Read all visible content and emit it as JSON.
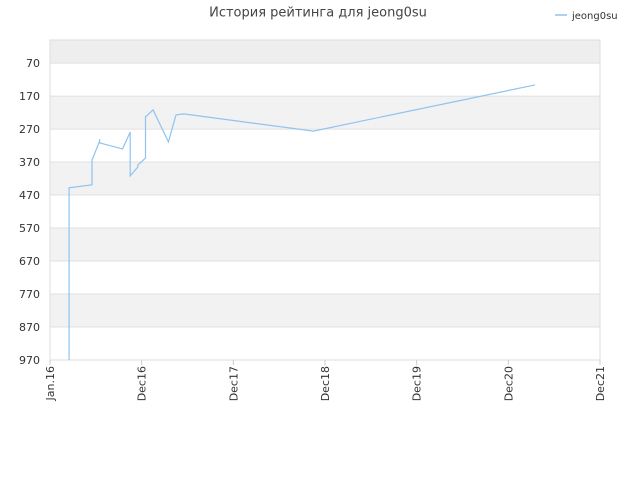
{
  "chart_data": {
    "type": "line",
    "title": "История рейтинга для jeong0su",
    "x": [
      "2016-02",
      "2016-02",
      "2016-02",
      "2016-02",
      "2016-02",
      "2016-02",
      "2016-02",
      "2016-05",
      "2016-05",
      "2016-06",
      "2016-06",
      "2016-06",
      "2016-09",
      "2016-10",
      "2016-10",
      "2016-10",
      "2016-11",
      "2016-11",
      "2016-12",
      "2016-12",
      "2016-12",
      "2017-01",
      "2017-03",
      "2017-04",
      "2017-05",
      "2018-10",
      "2021-03"
    ],
    "series": [
      {
        "name": "jeong0su",
        "color": "#90c3ef",
        "values": [
          970,
          812,
          773,
          636,
          594,
          470,
          448,
          439,
          364,
          306,
          300,
          312,
          330,
          279,
          333,
          412,
          385,
          379,
          358,
          230,
          233,
          212,
          309,
          227,
          224,
          276,
          136
        ]
      }
    ],
    "xlim": [
      "2015-12",
      "2021-12"
    ],
    "xticks": [
      {
        "value": "2015-12",
        "label": "Jan.16"
      },
      {
        "value": "2016-12",
        "label": "Dec16"
      },
      {
        "value": "2017-12",
        "label": "Dec17"
      },
      {
        "value": "2018-12",
        "label": "Dec18"
      },
      {
        "value": "2019-12",
        "label": "Dec19"
      },
      {
        "value": "2020-12",
        "label": "Dec20"
      },
      {
        "value": "2021-12",
        "label": "Dec21"
      }
    ],
    "ylim": [
      0,
      970
    ],
    "y_inverted": true,
    "yticks": [
      70,
      170,
      270,
      370,
      470,
      570,
      670,
      770,
      870,
      970
    ],
    "legend": "top-right",
    "grid": true
  }
}
